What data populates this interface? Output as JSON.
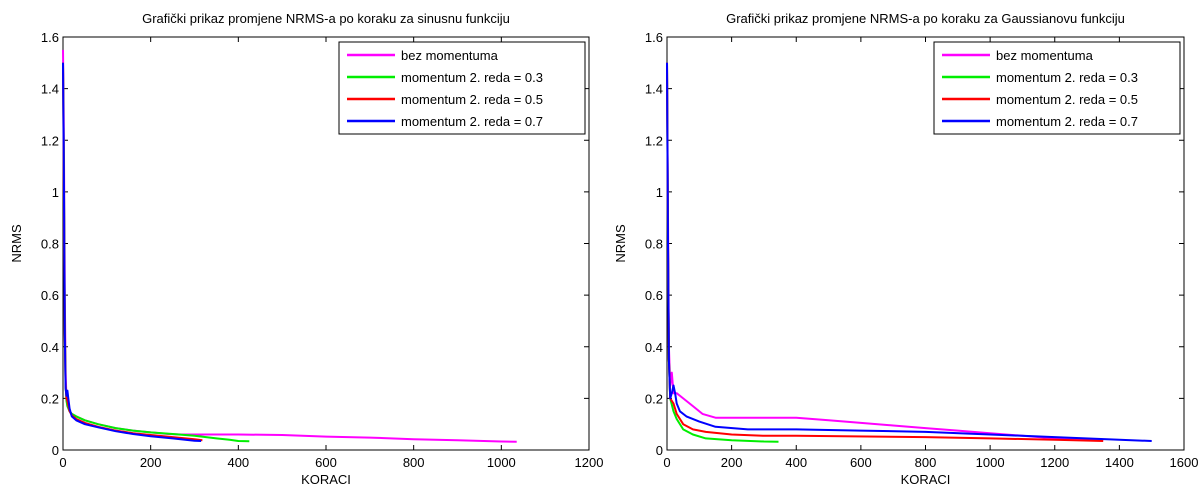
{
  "chart_data": [
    {
      "type": "line",
      "title": "Grafički prikaz promjene NRMS-a po koraku za sinusnu funkciju",
      "xlabel": "KORACI",
      "ylabel": "NRMS",
      "xlim": [
        0,
        1200
      ],
      "ylim": [
        0,
        1.6
      ],
      "xticks": [
        0,
        200,
        400,
        600,
        800,
        1000,
        1200
      ],
      "yticks": [
        0,
        0.2,
        0.4,
        0.6,
        0.8,
        1,
        1.2,
        1.4,
        1.6
      ],
      "xtick_labels": [
        "0",
        "200",
        "400",
        "600",
        "800",
        "1000",
        "1200"
      ],
      "ytick_labels": [
        "0",
        "0.2",
        "0.4",
        "0.6",
        "0.8",
        "1",
        "1.2",
        "1.4",
        "1.6"
      ],
      "legend_position": "top-right",
      "grid": false,
      "series": [
        {
          "name": "bez momentuma",
          "color": "#ff00ff",
          "x": [
            0,
            2,
            4,
            6,
            8,
            10,
            15,
            20,
            30,
            50,
            80,
            120,
            160,
            200,
            240,
            270,
            300,
            400,
            500,
            600,
            700,
            800,
            900,
            1000,
            1035
          ],
          "y": [
            1.55,
            1.2,
            0.6,
            0.3,
            0.2,
            0.17,
            0.15,
            0.14,
            0.13,
            0.115,
            0.1,
            0.085,
            0.075,
            0.068,
            0.062,
            0.06,
            0.06,
            0.06,
            0.058,
            0.052,
            0.048,
            0.042,
            0.038,
            0.033,
            0.032
          ]
        },
        {
          "name": "momentum 2. reda = 0.3",
          "color": "#00ee00",
          "x": [
            0,
            2,
            4,
            6,
            8,
            10,
            15,
            20,
            30,
            50,
            80,
            120,
            160,
            200,
            250,
            300,
            350,
            380,
            400,
            425
          ],
          "y": [
            1.5,
            1.1,
            0.5,
            0.25,
            0.19,
            0.17,
            0.15,
            0.14,
            0.13,
            0.115,
            0.1,
            0.085,
            0.075,
            0.068,
            0.062,
            0.055,
            0.045,
            0.04,
            0.035,
            0.034
          ]
        },
        {
          "name": "momentum 2. reda = 0.5",
          "color": "#ff0000",
          "x": [
            0,
            2,
            4,
            6,
            8,
            10,
            15,
            20,
            30,
            50,
            80,
            120,
            160,
            200,
            250,
            300,
            318
          ],
          "y": [
            1.5,
            1.0,
            0.45,
            0.25,
            0.2,
            0.19,
            0.15,
            0.135,
            0.12,
            0.105,
            0.09,
            0.075,
            0.065,
            0.058,
            0.05,
            0.042,
            0.038
          ]
        },
        {
          "name": "momentum 2. reda = 0.7",
          "color": "#0000ff",
          "x": [
            0,
            2,
            4,
            6,
            8,
            10,
            12,
            15,
            20,
            30,
            50,
            80,
            120,
            160,
            200,
            250,
            300,
            315
          ],
          "y": [
            1.5,
            1.05,
            0.45,
            0.24,
            0.21,
            0.23,
            0.2,
            0.16,
            0.13,
            0.115,
            0.1,
            0.088,
            0.073,
            0.062,
            0.053,
            0.045,
            0.036,
            0.035
          ]
        }
      ]
    },
    {
      "type": "line",
      "title": "Grafički prikaz promjene NRMS-a po koraku za Gaussianovu funkciju",
      "xlabel": "KORACI",
      "ylabel": "NRMS",
      "xlim": [
        0,
        1600
      ],
      "ylim": [
        0,
        1.6
      ],
      "xticks": [
        0,
        200,
        400,
        600,
        800,
        1000,
        1200,
        1400,
        1600
      ],
      "yticks": [
        0,
        0.2,
        0.4,
        0.6,
        0.8,
        1,
        1.2,
        1.4,
        1.6
      ],
      "xtick_labels": [
        "0",
        "200",
        "400",
        "600",
        "800",
        "1000",
        "1200",
        "1400",
        "1600"
      ],
      "ytick_labels": [
        "0",
        "0.2",
        "0.4",
        "0.6",
        "0.8",
        "1",
        "1.2",
        "1.4",
        "1.6"
      ],
      "legend_position": "top-right",
      "grid": false,
      "series": [
        {
          "name": "bez momentuma",
          "color": "#ff00ff",
          "x": [
            0,
            3,
            6,
            10,
            15,
            20,
            30,
            50,
            80,
            110,
            150,
            200,
            300,
            400,
            500,
            600,
            700,
            800,
            900,
            1000,
            1100,
            1200,
            1300,
            1350
          ],
          "y": [
            1.5,
            0.9,
            0.4,
            0.25,
            0.3,
            0.22,
            0.22,
            0.2,
            0.17,
            0.14,
            0.125,
            0.125,
            0.125,
            0.125,
            0.115,
            0.105,
            0.095,
            0.085,
            0.075,
            0.065,
            0.055,
            0.045,
            0.04,
            0.04
          ]
        },
        {
          "name": "momentum 2. reda = 0.3",
          "color": "#00ee00",
          "x": [
            0,
            3,
            6,
            10,
            20,
            30,
            50,
            80,
            120,
            200,
            300,
            345
          ],
          "y": [
            1.5,
            0.8,
            0.35,
            0.2,
            0.15,
            0.12,
            0.08,
            0.06,
            0.045,
            0.038,
            0.033,
            0.032
          ]
        },
        {
          "name": "momentum 2. reda = 0.5",
          "color": "#ff0000",
          "x": [
            0,
            3,
            6,
            10,
            20,
            30,
            50,
            80,
            120,
            200,
            300,
            400,
            800,
            1000,
            1200,
            1350
          ],
          "y": [
            1.5,
            0.8,
            0.35,
            0.2,
            0.18,
            0.14,
            0.1,
            0.08,
            0.07,
            0.06,
            0.055,
            0.055,
            0.05,
            0.045,
            0.04,
            0.035
          ]
        },
        {
          "name": "momentum 2. reda = 0.7",
          "color": "#0000ff",
          "x": [
            0,
            3,
            6,
            10,
            15,
            20,
            25,
            30,
            40,
            60,
            100,
            150,
            250,
            400,
            600,
            800,
            1000,
            1200,
            1400,
            1500
          ],
          "y": [
            1.5,
            0.8,
            0.35,
            0.2,
            0.22,
            0.25,
            0.22,
            0.18,
            0.15,
            0.13,
            0.11,
            0.09,
            0.08,
            0.08,
            0.075,
            0.07,
            0.06,
            0.05,
            0.04,
            0.035
          ]
        }
      ]
    }
  ]
}
